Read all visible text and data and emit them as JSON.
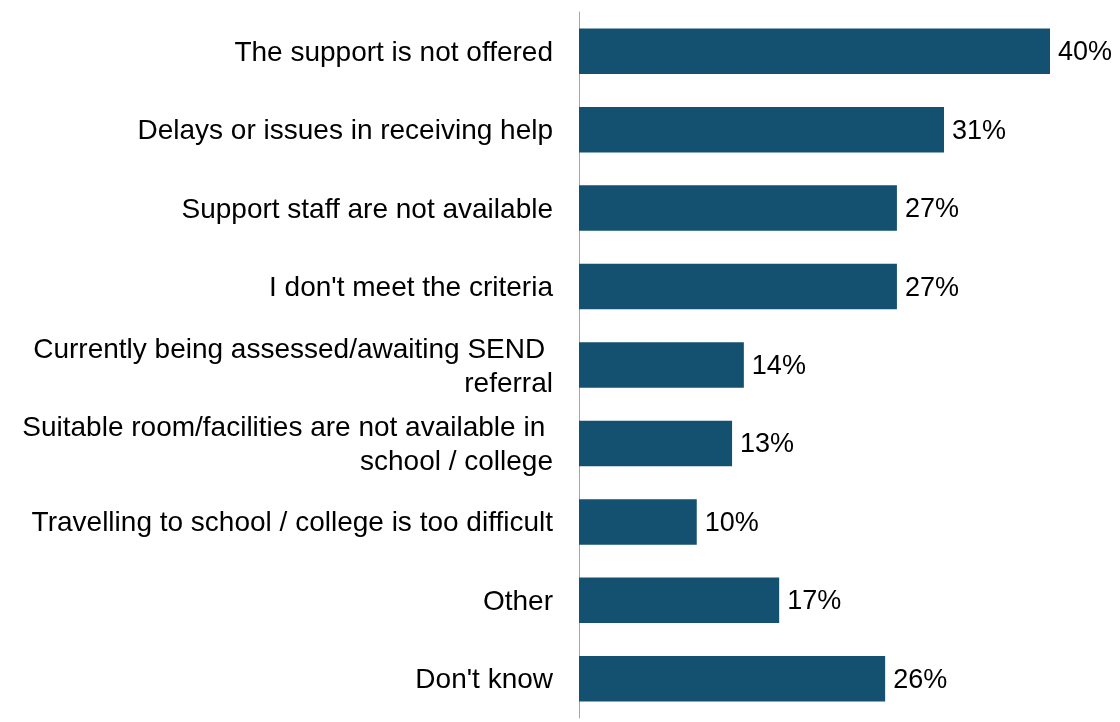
{
  "chart_data": {
    "type": "bar",
    "orientation": "horizontal",
    "categories": [
      "The support is not offered",
      "Delays or issues in receiving help",
      "Support staff are not available",
      "I don't meet the criteria",
      "Currently being assessed/awaiting SEND referral",
      "Suitable room/facilities are not available in school / college",
      "Travelling to school / college is too difficult",
      "Other",
      "Don't know"
    ],
    "values": [
      40,
      31,
      27,
      27,
      14,
      13,
      10,
      17,
      26
    ],
    "value_labels": [
      "40%",
      "31%",
      "27%",
      "27%",
      "14%",
      "13%",
      "10%",
      "17%",
      "26%"
    ],
    "color": "#14506f",
    "tick_labels": "y"
  }
}
